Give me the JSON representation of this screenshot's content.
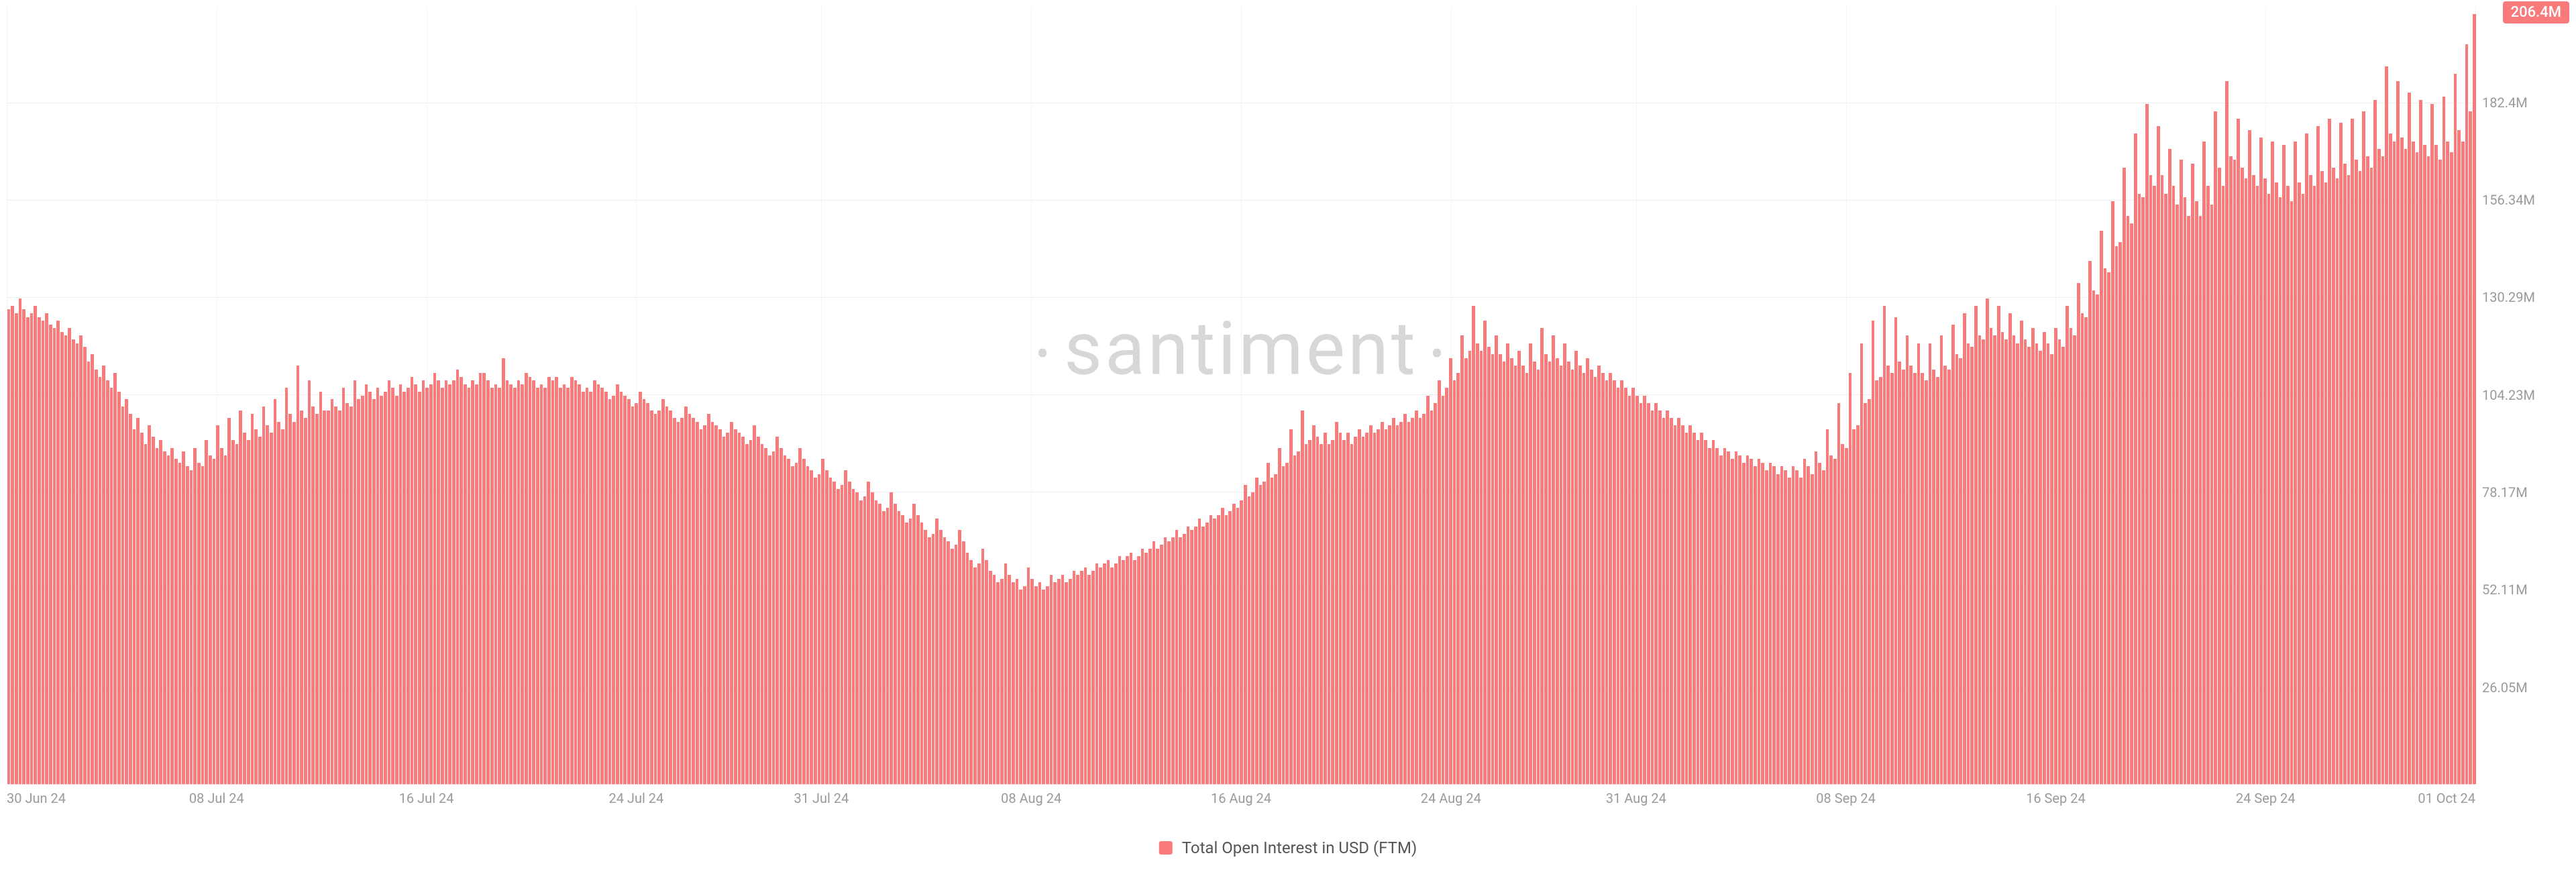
{
  "chart": {
    "type": "bar",
    "watermark": "santiment",
    "background_color": "#ffffff",
    "grid_color": "#ededed",
    "grid_color_v": "#f3f3f3",
    "bar_color": "#f97a7a",
    "axis_text_color": "#9a9a9a",
    "axis_fontsize": 20,
    "watermark_color": "#d7d7d7",
    "watermark_fontsize": 110,
    "ylim": [
      0,
      208
    ],
    "y_ticks": [
      {
        "v": 0,
        "label": ""
      },
      {
        "v": 26.05,
        "label": "26.05M"
      },
      {
        "v": 52.11,
        "label": "52.11M"
      },
      {
        "v": 78.17,
        "label": "78.17M"
      },
      {
        "v": 104.23,
        "label": "104.23M"
      },
      {
        "v": 130.29,
        "label": "130.29M"
      },
      {
        "v": 156.34,
        "label": "156.34M"
      },
      {
        "v": 182.4,
        "label": "182.4M"
      }
    ],
    "x_ticks": [
      {
        "pos": 0.0,
        "label": "30 Jun 24",
        "cls": "first"
      },
      {
        "pos": 0.085,
        "label": "08 Jul 24"
      },
      {
        "pos": 0.17,
        "label": "16 Jul 24"
      },
      {
        "pos": 0.255,
        "label": "24 Jul 24"
      },
      {
        "pos": 0.33,
        "label": "31 Jul 24"
      },
      {
        "pos": 0.415,
        "label": "08 Aug 24"
      },
      {
        "pos": 0.5,
        "label": "16 Aug 24"
      },
      {
        "pos": 0.585,
        "label": "24 Aug 24"
      },
      {
        "pos": 0.66,
        "label": "31 Aug 24"
      },
      {
        "pos": 0.745,
        "label": "08 Sep 24"
      },
      {
        "pos": 0.83,
        "label": "16 Sep 24"
      },
      {
        "pos": 0.915,
        "label": "24 Sep 24"
      },
      {
        "pos": 1.0,
        "label": "01 Oct 24",
        "cls": "last"
      }
    ],
    "current_value_label": "206.4M",
    "current_value": 206.4,
    "badge_bg": "#f97a7a",
    "badge_text_color": "#ffffff",
    "legend": {
      "swatch_color": "#f97a7a",
      "label": "Total Open Interest in USD (FTM)",
      "text_color": "#555555",
      "fontsize": 24
    },
    "values": [
      127,
      128,
      126,
      130,
      127,
      125,
      126,
      128,
      125,
      124,
      126,
      123,
      122,
      124,
      121,
      120,
      122,
      119,
      118,
      120,
      117,
      113,
      115,
      111,
      109,
      112,
      108,
      106,
      110,
      105,
      101,
      103,
      99,
      95,
      98,
      94,
      91,
      96,
      93,
      90,
      92,
      89,
      88,
      90,
      87,
      86,
      89,
      85,
      84,
      90,
      86,
      85,
      92,
      88,
      87,
      96,
      90,
      88,
      98,
      92,
      91,
      100,
      94,
      92,
      99,
      95,
      93,
      101,
      96,
      94,
      103,
      97,
      95,
      106,
      99,
      97,
      112,
      100,
      98,
      108,
      101,
      99,
      105,
      100,
      100,
      103,
      101,
      100,
      106,
      102,
      101,
      108,
      103,
      104,
      107,
      105,
      103,
      106,
      104,
      105,
      108,
      106,
      104,
      107,
      105,
      106,
      109,
      107,
      105,
      108,
      106,
      107,
      110,
      108,
      106,
      108,
      107,
      108,
      111,
      109,
      107,
      106,
      108,
      107,
      110,
      110,
      108,
      106,
      107,
      106,
      114,
      108,
      107,
      106,
      108,
      107,
      110,
      109,
      108,
      106,
      107,
      106,
      109,
      108,
      109,
      106,
      107,
      106,
      109,
      108,
      107,
      105,
      106,
      105,
      108,
      107,
      106,
      105,
      103,
      104,
      107,
      105,
      104,
      103,
      101,
      102,
      105,
      103,
      102,
      100,
      99,
      100,
      103,
      101,
      100,
      98,
      97,
      98,
      101,
      99,
      98,
      97,
      95,
      96,
      99,
      97,
      96,
      95,
      93,
      94,
      97,
      95,
      94,
      93,
      91,
      92,
      96,
      93,
      91,
      90,
      88,
      89,
      93,
      90,
      88,
      87,
      85,
      86,
      90,
      87,
      85,
      84,
      82,
      83,
      87,
      84,
      82,
      81,
      79,
      80,
      84,
      81,
      79,
      78,
      76,
      77,
      81,
      78,
      76,
      75,
      73,
      74,
      78,
      75,
      73,
      72,
      70,
      71,
      75,
      72,
      70,
      68,
      66,
      67,
      71,
      68,
      66,
      65,
      63,
      64,
      68,
      65,
      62,
      60,
      58,
      59,
      63,
      60,
      57,
      56,
      54,
      55,
      59,
      56,
      54,
      55,
      52,
      53,
      58,
      55,
      53,
      54,
      52,
      53,
      56,
      54,
      55,
      56,
      54,
      55,
      57,
      56,
      57,
      58,
      56,
      57,
      59,
      58,
      59,
      60,
      58,
      59,
      61,
      60,
      61,
      62,
      60,
      61,
      63,
      62,
      63,
      65,
      63,
      64,
      66,
      65,
      66,
      68,
      66,
      67,
      69,
      68,
      69,
      71,
      69,
      70,
      72,
      71,
      72,
      74,
      72,
      73,
      75,
      74,
      76,
      80,
      77,
      78,
      82,
      80,
      81,
      86,
      82,
      83,
      90,
      85,
      86,
      95,
      88,
      89,
      100,
      91,
      92,
      96,
      93,
      91,
      94,
      91,
      92,
      97,
      94,
      92,
      94,
      91,
      93,
      95,
      93,
      94,
      96,
      94,
      95,
      97,
      95,
      96,
      98,
      96,
      97,
      99,
      97,
      98,
      100,
      98,
      99,
      104,
      100,
      102,
      108,
      104,
      106,
      114,
      108,
      110,
      120,
      114,
      116,
      128,
      118,
      116,
      124,
      117,
      115,
      120,
      115,
      113,
      118,
      114,
      112,
      116,
      112,
      110,
      118,
      113,
      111,
      122,
      115,
      113,
      120,
      114,
      112,
      118,
      113,
      111,
      116,
      112,
      110,
      114,
      111,
      109,
      112,
      110,
      108,
      110,
      108,
      106,
      108,
      106,
      104,
      106,
      104,
      102,
      104,
      102,
      100,
      102,
      100,
      98,
      100,
      98,
      96,
      98,
      96,
      94,
      96,
      94,
      92,
      94,
      92,
      90,
      92,
      90,
      88,
      90,
      89,
      87,
      89,
      88,
      86,
      88,
      87,
      85,
      87,
      86,
      84,
      86,
      85,
      83,
      85,
      84,
      82,
      85,
      84,
      82,
      87,
      85,
      83,
      89,
      86,
      84,
      95,
      88,
      87,
      102,
      91,
      90,
      110,
      95,
      96,
      118,
      102,
      103,
      124,
      108,
      109,
      128,
      112,
      110,
      125,
      113,
      111,
      120,
      112,
      110,
      118,
      110,
      108,
      118,
      111,
      109,
      120,
      112,
      111,
      123,
      115,
      114,
      126,
      118,
      117,
      128,
      120,
      119,
      130,
      122,
      120,
      128,
      121,
      119,
      126,
      120,
      118,
      124,
      119,
      117,
      122,
      118,
      116,
      121,
      118,
      115,
      122,
      119,
      117,
      128,
      122,
      120,
      134,
      126,
      125,
      140,
      132,
      131,
      148,
      138,
      137,
      156,
      144,
      145,
      165,
      152,
      150,
      174,
      158,
      157,
      182,
      163,
      160,
      176,
      163,
      158,
      170,
      160,
      155,
      167,
      157,
      152,
      166,
      156,
      152,
      172,
      160,
      155,
      180,
      165,
      160,
      188,
      168,
      167,
      178,
      165,
      162,
      175,
      163,
      160,
      173,
      162,
      158,
      172,
      161,
      157,
      171,
      160,
      156,
      172,
      161,
      158,
      174,
      163,
      160,
      176,
      164,
      161,
      178,
      165,
      162,
      177,
      166,
      163,
      178,
      167,
      164,
      180,
      168,
      165,
      183,
      170,
      168,
      192,
      174,
      172,
      188,
      173,
      170,
      185,
      172,
      169,
      183,
      171,
      168,
      182,
      171,
      167,
      184,
      172,
      169,
      190,
      175,
      172,
      198,
      180,
      206
    ]
  }
}
